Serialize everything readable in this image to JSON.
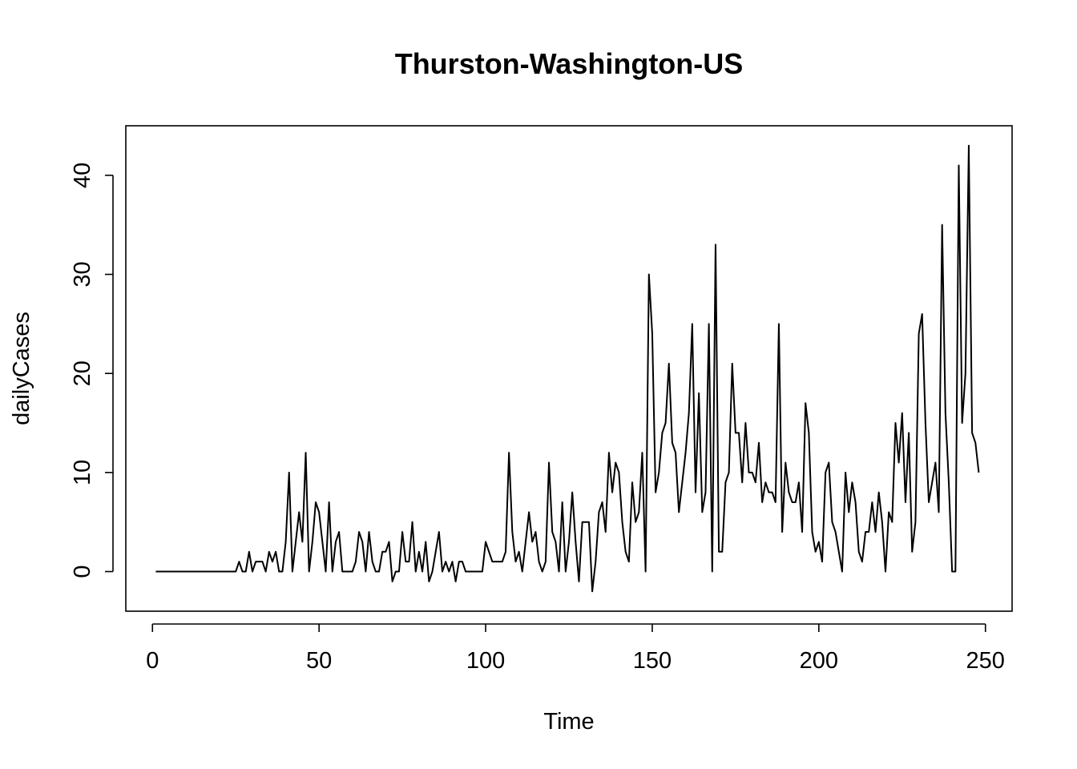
{
  "chart_data": {
    "type": "line",
    "title": "Thurston-Washington-US",
    "xlabel": "Time",
    "ylabel": "dailyCases",
    "xlim": [
      -8,
      258
    ],
    "ylim": [
      -4,
      45
    ],
    "xticks": [
      0,
      50,
      100,
      150,
      200,
      250
    ],
    "yticks": [
      0,
      10,
      20,
      30,
      40
    ],
    "grid": false,
    "legend": "none",
    "series": [
      {
        "color": "#000000",
        "values": [
          0,
          0,
          0,
          0,
          0,
          0,
          0,
          0,
          0,
          0,
          0,
          0,
          0,
          0,
          0,
          0,
          0,
          0,
          0,
          0,
          0,
          0,
          0,
          0,
          0,
          1,
          0,
          0,
          2,
          0,
          1,
          1,
          1,
          0,
          2,
          1,
          2,
          0,
          0,
          3,
          10,
          0,
          3,
          6,
          3,
          12,
          0,
          3,
          7,
          6,
          3,
          0,
          7,
          0,
          3,
          4,
          0,
          0,
          0,
          0,
          1,
          4,
          3,
          0,
          4,
          1,
          0,
          0,
          2,
          2,
          3,
          -1,
          0,
          0,
          4,
          1,
          1,
          5,
          0,
          2,
          0,
          3,
          -1,
          0,
          2,
          4,
          0,
          1,
          0,
          1,
          -1,
          1,
          1,
          0,
          0,
          0,
          0,
          0,
          0,
          3,
          2,
          1,
          1,
          1,
          1,
          2,
          12,
          4,
          1,
          2,
          0,
          3,
          6,
          3,
          4,
          1,
          0,
          1,
          11,
          4,
          3,
          0,
          7,
          0,
          3,
          8,
          3,
          -1,
          5,
          5,
          5,
          -2,
          1,
          6,
          7,
          4,
          12,
          8,
          11,
          10,
          5,
          2,
          1,
          9,
          5,
          6,
          12,
          0,
          30,
          24,
          8,
          10,
          14,
          15,
          21,
          13,
          12,
          6,
          9,
          12,
          16,
          25,
          8,
          18,
          6,
          8,
          25,
          0,
          33,
          2,
          2,
          9,
          10,
          21,
          14,
          14,
          9,
          15,
          10,
          10,
          9,
          13,
          7,
          9,
          8,
          8,
          7,
          25,
          4,
          11,
          8,
          7,
          7,
          9,
          4,
          17,
          14,
          4,
          2,
          3,
          1,
          10,
          11,
          5,
          4,
          2,
          0,
          10,
          6,
          9,
          7,
          2,
          1,
          4,
          4,
          7,
          4,
          8,
          5,
          0,
          6,
          5,
          15,
          11,
          16,
          7,
          14,
          2,
          5,
          24,
          26,
          15,
          7,
          9,
          11,
          6,
          35,
          16,
          9,
          0,
          0,
          41,
          15,
          20,
          43,
          14,
          13,
          10
        ]
      }
    ]
  }
}
